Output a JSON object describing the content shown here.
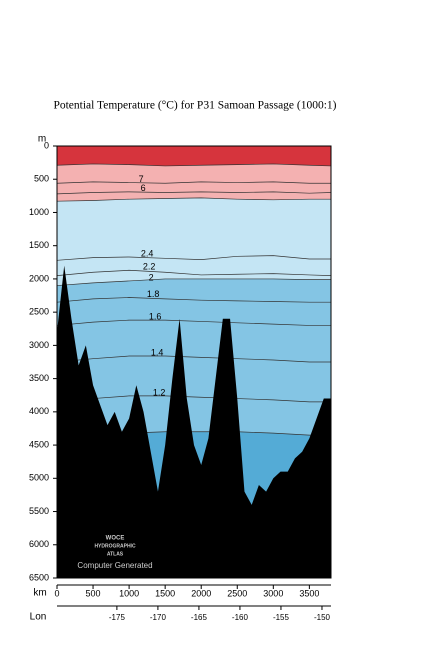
{
  "chart_data": {
    "type": "contour",
    "title": "Potential Temperature (°C) for P31 Samoan Passage (1000:1)",
    "y_label": "m",
    "x_label": "km",
    "x2_label": "Lon",
    "xlim": [
      0,
      3800
    ],
    "ylim": [
      0,
      6500
    ],
    "xticks": [
      0,
      500,
      1000,
      1500,
      2000,
      2500,
      3000,
      3500
    ],
    "yticks": [
      0,
      500,
      1000,
      1500,
      2000,
      2500,
      3000,
      3500,
      4000,
      4500,
      5000,
      5500,
      6000,
      6500
    ],
    "x2lim": [
      -182.3,
      -148.9
    ],
    "x2ticks": [
      -175,
      -170,
      -165,
      -160,
      -155,
      -150
    ],
    "top_color": "#d6343d",
    "x": [
      0,
      500,
      1000,
      1500,
      2000,
      2500,
      3000,
      3500,
      3800
    ],
    "isotherms": [
      {
        "name": null,
        "color": "#f4b1b1",
        "depth": [
          290,
          270,
          280,
          300,
          290,
          280,
          270,
          290,
          300
        ]
      },
      {
        "name": "7",
        "color": null,
        "depth": [
          560,
          540,
          550,
          560,
          540,
          550,
          540,
          560,
          560
        ]
      },
      {
        "name": "6",
        "color": null,
        "depth": [
          720,
          700,
          690,
          700,
          690,
          700,
          690,
          710,
          700
        ]
      },
      {
        "name": null,
        "color": "#c4e5f4",
        "depth": [
          830,
          820,
          800,
          790,
          780,
          800,
          810,
          800,
          800
        ]
      },
      {
        "name": "2.4",
        "color": null,
        "depth": [
          1720,
          1680,
          1670,
          1690,
          1710,
          1660,
          1650,
          1700,
          1700
        ]
      },
      {
        "name": "2.2",
        "color": null,
        "depth": [
          1950,
          1900,
          1870,
          1900,
          1940,
          1930,
          1920,
          1940,
          1950
        ]
      },
      {
        "name": "2",
        "color": "#84c5e4",
        "depth": [
          2100,
          2060,
          2030,
          2000,
          2000,
          2000,
          2000,
          2010,
          2010
        ]
      },
      {
        "name": "1.8",
        "color": null,
        "depth": [
          2350,
          2300,
          2280,
          2300,
          2320,
          2330,
          2340,
          2350,
          2350
        ]
      },
      {
        "name": "1.6",
        "color": null,
        "depth": [
          2700,
          2650,
          2620,
          2620,
          2640,
          2660,
          2680,
          2700,
          2700
        ]
      },
      {
        "name": "1.4",
        "color": null,
        "depth": [
          3250,
          3200,
          3160,
          3160,
          3180,
          3200,
          3220,
          3250,
          3250
        ]
      },
      {
        "name": "1.2",
        "color": null,
        "depth": [
          3850,
          3800,
          3760,
          3760,
          3780,
          3800,
          3820,
          3850,
          3850
        ]
      },
      {
        "name": null,
        "color": "#54abd6",
        "depth": [
          4400,
          4350,
          4320,
          4300,
          4300,
          4300,
          4320,
          4350,
          4350
        ]
      }
    ],
    "bathymetry": {
      "color": "#000000",
      "km": [
        0,
        100,
        200,
        300,
        400,
        500,
        600,
        700,
        800,
        900,
        1000,
        1100,
        1200,
        1300,
        1400,
        1500,
        1600,
        1700,
        1800,
        1900,
        2000,
        2100,
        2200,
        2300,
        2400,
        2500,
        2600,
        2700,
        2800,
        2900,
        3000,
        3100,
        3200,
        3300,
        3400,
        3500,
        3600,
        3700,
        3800
      ],
      "depth": [
        2800,
        1800,
        2600,
        3300,
        3000,
        3600,
        3900,
        4200,
        4000,
        4300,
        4100,
        3600,
        4000,
        4600,
        5200,
        4500,
        3500,
        2600,
        3800,
        4500,
        4800,
        4400,
        3500,
        2600,
        2600,
        3800,
        5200,
        5400,
        5100,
        5200,
        5000,
        4900,
        4900,
        4700,
        4600,
        4400,
        4100,
        3800,
        3800
      ]
    },
    "annotations": [
      "WOCE",
      "HYDROGRAPHIC",
      "ATLAS",
      "Computer Generated"
    ]
  }
}
